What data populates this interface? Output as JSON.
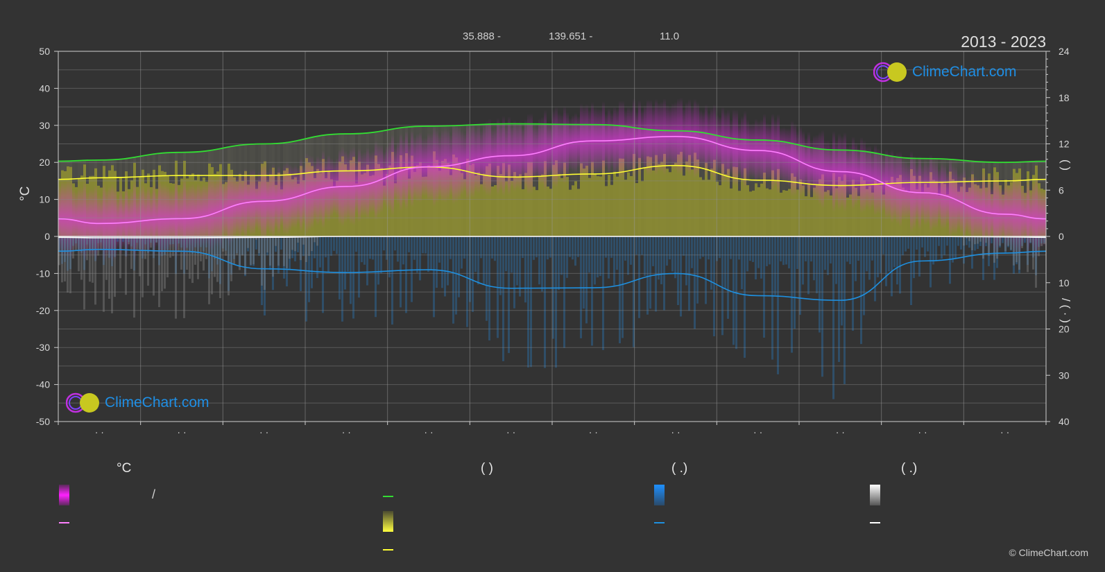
{
  "header": {
    "lat": "35.888 -",
    "lon": "139.651 -",
    "elev": "11.0",
    "years": "2013 - 2023",
    "copyright": "© ClimeChart.com"
  },
  "logo": {
    "text": "ClimeChart.com"
  },
  "legend": {
    "temp_heading": "°C",
    "sun_heading": "(          )",
    "rain_heading": "(    .)",
    "snow_heading": "(    .)",
    "slash": "/"
  },
  "axis_titles": {
    "left": "°C",
    "right_top": "(       )",
    "right_bottom": "/     (  ·  )"
  },
  "colors": {
    "background": "#333333",
    "temp_band": "#e030e0",
    "temp_mean": "#ff80ff",
    "daylight": "#33dd33",
    "sunshine_band": "#c8c830",
    "sunshine_line": "#ffff33",
    "rain": "#1e90e0",
    "snow": "#ffffff"
  },
  "chart_data": {
    "type": "line",
    "x_tick_labels": [
      "· ·",
      "· ·",
      "· ·",
      "· ·",
      "· ·",
      "· ·",
      "· ·",
      "· ·",
      "· ·",
      "· ·",
      "· ·",
      "· ·"
    ],
    "x": [
      1,
      2,
      3,
      4,
      5,
      6,
      7,
      8,
      9,
      10,
      11,
      12
    ],
    "left_axis": {
      "unit": "°C",
      "ylim": [
        -50,
        50
      ],
      "ticks": [
        50,
        40,
        30,
        20,
        10,
        0,
        -10,
        -20,
        -30,
        -40,
        -50
      ]
    },
    "right_axis_top": {
      "unit": "hours",
      "ylim": [
        0,
        24
      ],
      "ticks": [
        24,
        18,
        12,
        6,
        0
      ]
    },
    "right_axis_bottom": {
      "unit": "mm",
      "ylim": [
        0,
        40
      ],
      "ticks": [
        0,
        10,
        20,
        30,
        40
      ]
    },
    "series": [
      {
        "key": "temp_mean",
        "axis": "left",
        "values": [
          3.5,
          4.8,
          9.5,
          13.5,
          18.8,
          21.8,
          25.8,
          27.0,
          23.2,
          17.5,
          11.8,
          6.0
        ]
      },
      {
        "key": "daylight",
        "axis": "hours",
        "values": [
          9.9,
          10.9,
          12.0,
          13.3,
          14.3,
          14.6,
          14.5,
          13.7,
          12.5,
          11.2,
          10.1,
          9.6
        ]
      },
      {
        "key": "sunshine",
        "axis": "hours",
        "values": [
          7.6,
          7.9,
          7.9,
          8.5,
          9.0,
          7.7,
          8.1,
          9.2,
          7.3,
          6.6,
          7.0,
          7.2
        ]
      },
      {
        "key": "rain",
        "axis": "mm",
        "values": [
          2.8,
          3.2,
          7.0,
          7.8,
          7.2,
          11.2,
          11.1,
          8.0,
          12.8,
          13.8,
          5.3,
          3.6
        ]
      },
      {
        "key": "snow",
        "axis": "mm",
        "values": [
          0.3,
          0.3,
          0.2,
          0,
          0,
          0,
          0,
          0,
          0,
          0,
          0,
          0.1
        ]
      }
    ],
    "grid": true
  }
}
